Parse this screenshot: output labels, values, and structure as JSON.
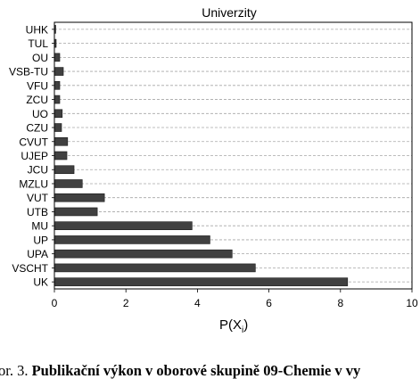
{
  "chart_data": {
    "type": "bar",
    "orientation": "horizontal",
    "title": "Univerzity",
    "xlabel": "P(X",
    "xlabel_subscript": "i",
    "xlabel_close": ")",
    "categories": [
      "UHK",
      "TUL",
      "OU",
      "VSB-TU",
      "VFU",
      "ZCU",
      "UO",
      "CZU",
      "CVUT",
      "UJEP",
      "JCU",
      "MZLU",
      "VUT",
      "UTB",
      "MU",
      "UP",
      "UPA",
      "VSCHT",
      "UK"
    ],
    "values": [
      0.03,
      0.05,
      0.15,
      0.25,
      0.15,
      0.15,
      0.22,
      0.2,
      0.37,
      0.35,
      0.55,
      0.78,
      1.4,
      1.2,
      3.85,
      4.35,
      4.97,
      5.62,
      8.2
    ],
    "xlim": [
      0,
      10
    ],
    "xticks": [
      "0",
      "2",
      "4",
      "6",
      "8",
      "10"
    ],
    "grid": "horizontal dashed",
    "bar_color": "#404040"
  },
  "caption": {
    "prefix": "or. 3. ",
    "bold_text": "Publikační výkon v oborové skupině 09-Chemie v vy"
  }
}
